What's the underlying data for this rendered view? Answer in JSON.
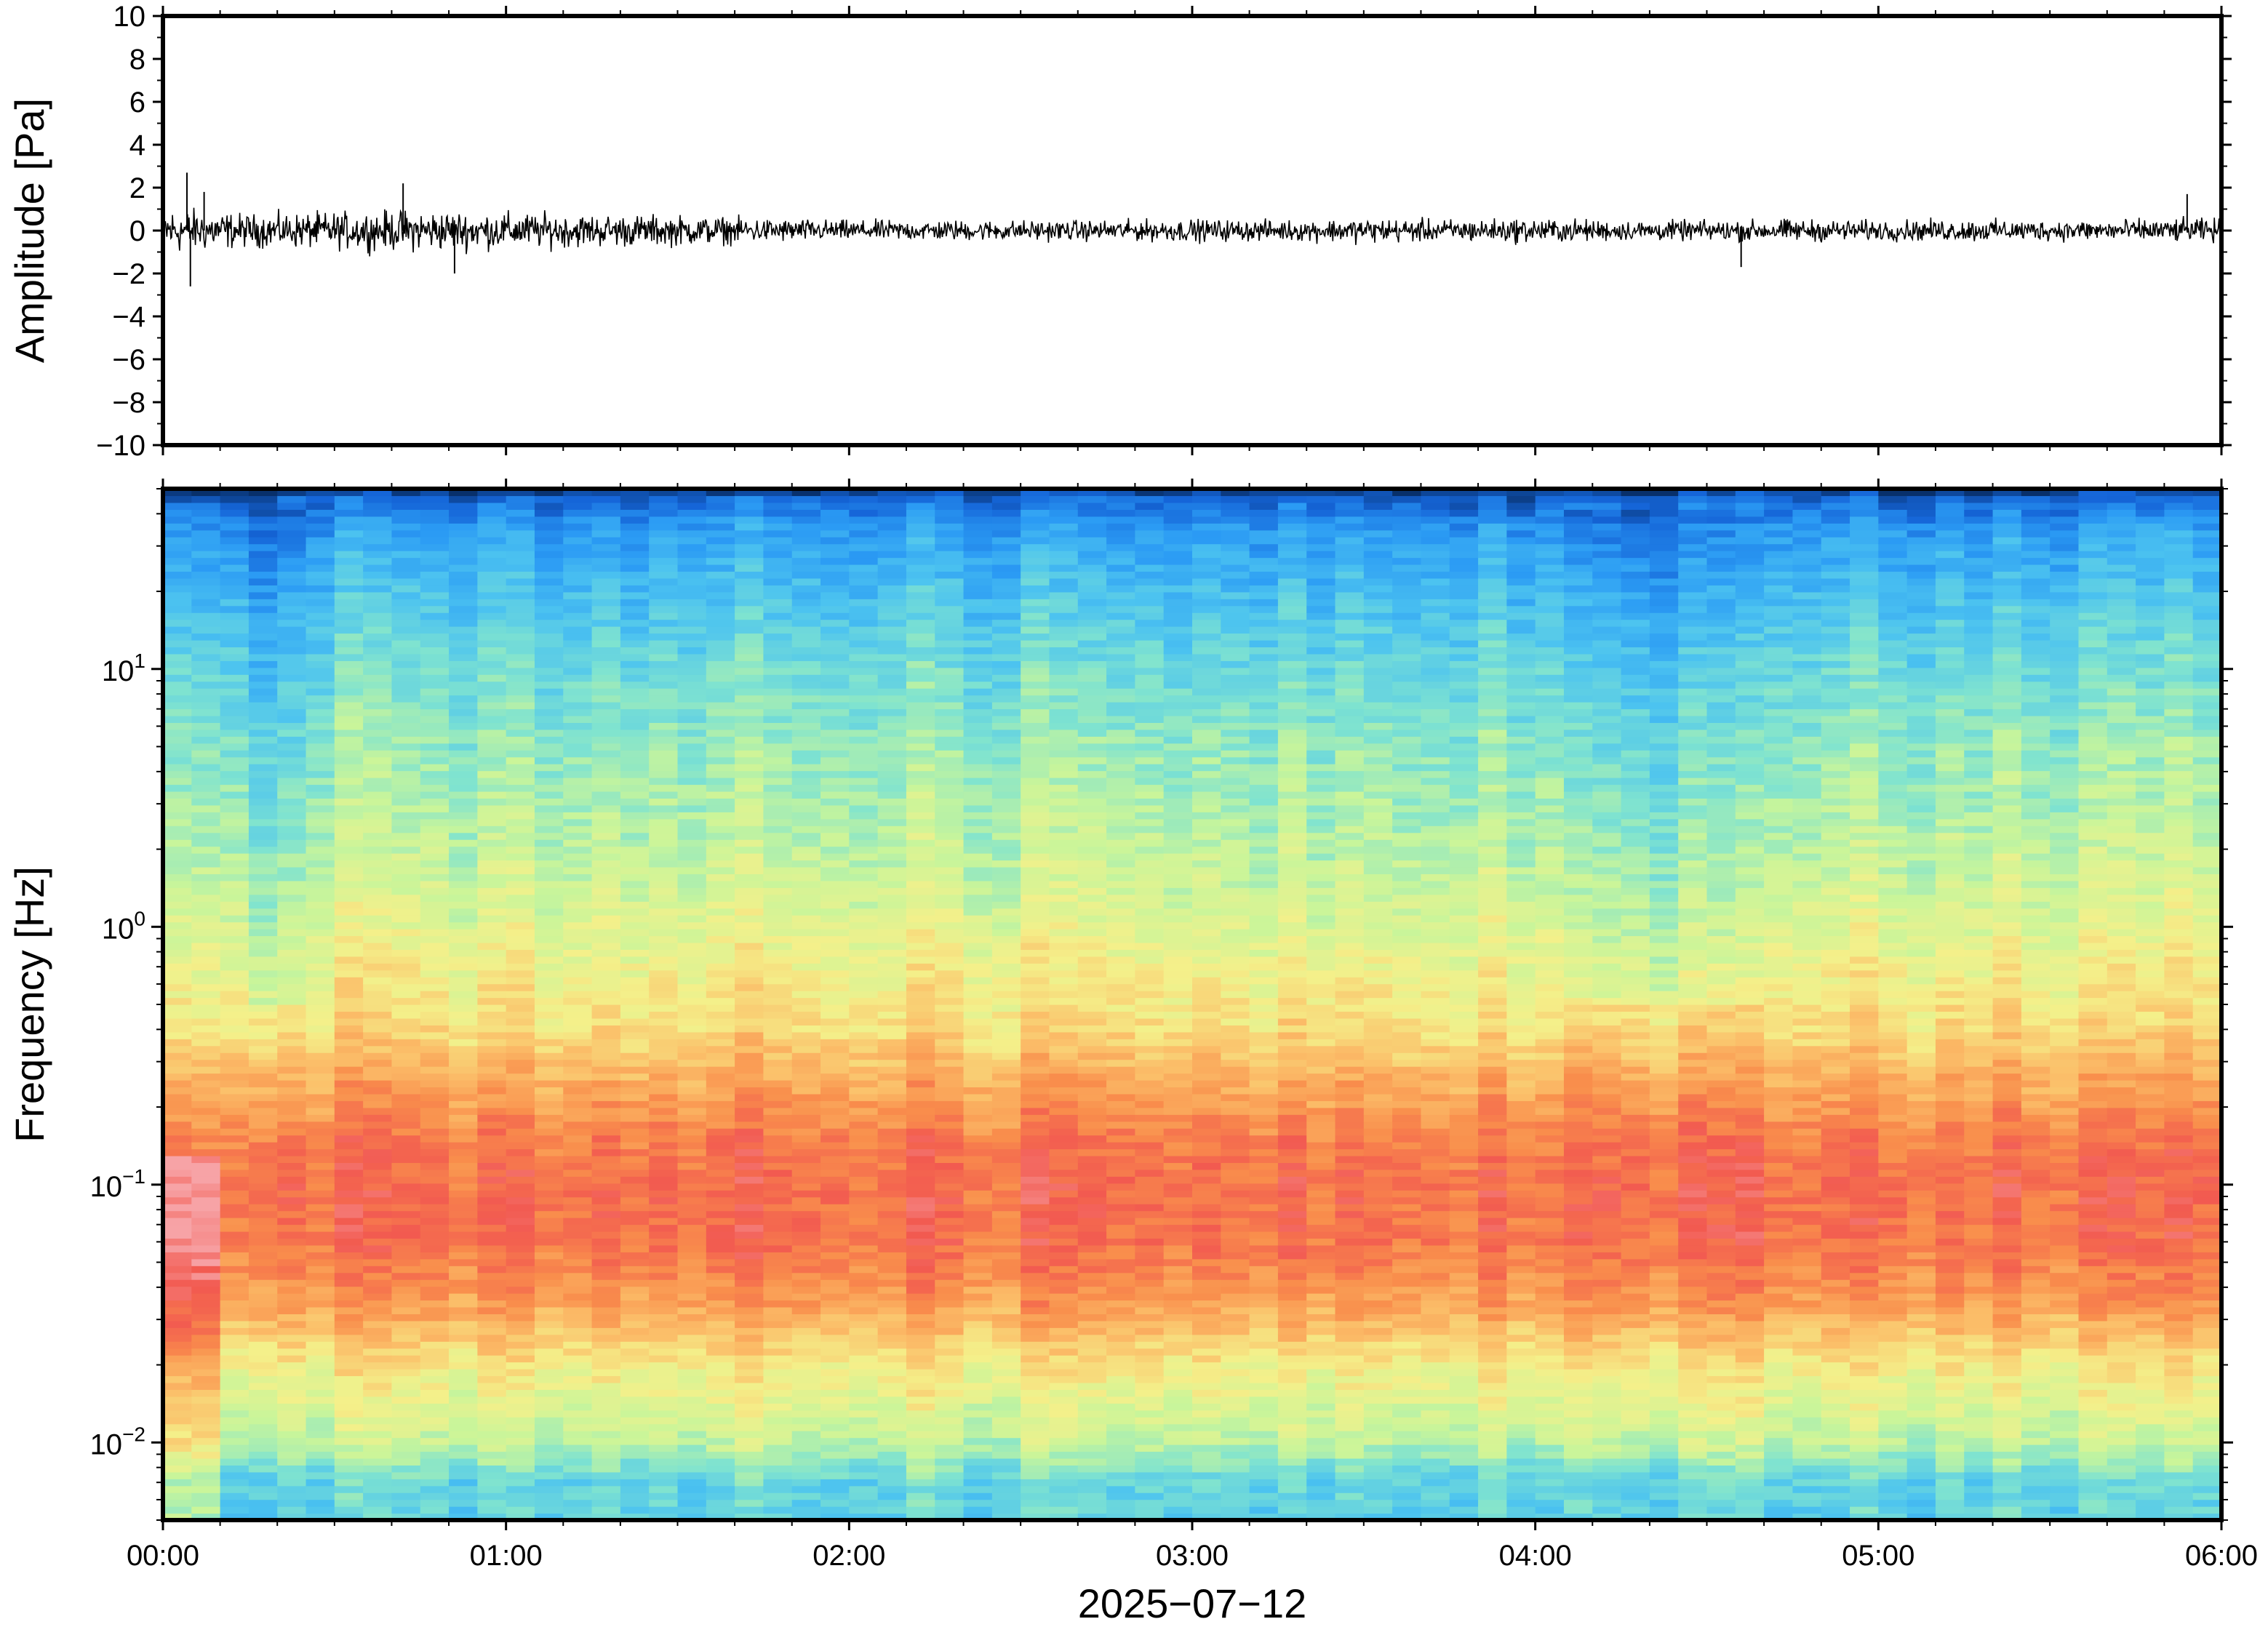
{
  "chart_data": [
    {
      "panel": "waveform",
      "type": "line",
      "ylabel": "Amplitude [Pa]",
      "ylim": [
        -10,
        10
      ],
      "yticks": [
        10,
        8,
        6,
        4,
        2,
        0,
        -2,
        -4,
        -6,
        -8,
        -10
      ],
      "ytick_labels": [
        "10",
        "8",
        "6",
        "4",
        "2",
        "0",
        "−2",
        "−4",
        "−6",
        "−8",
        "−10"
      ],
      "xlim_hours": [
        0,
        6
      ],
      "grid": false,
      "series": [
        {
          "x_hours": [
            0.0,
            0.25,
            0.5,
            0.75,
            1.0,
            1.25,
            1.5,
            1.75,
            2.0,
            2.25,
            2.5,
            2.75,
            3.0,
            3.25,
            3.5,
            3.75,
            4.0,
            4.25,
            4.5,
            4.75,
            5.0,
            5.25,
            5.5,
            5.75,
            6.0
          ],
          "envelope_pa": [
            1.2,
            0.8,
            0.9,
            1.0,
            0.9,
            0.8,
            0.75,
            0.6,
            0.5,
            0.5,
            0.5,
            0.5,
            0.55,
            0.5,
            0.6,
            0.55,
            0.6,
            0.5,
            0.5,
            0.55,
            0.5,
            0.55,
            0.5,
            0.55,
            0.6
          ],
          "spikes": [
            {
              "x_hours": 0.07,
              "y": 2.7
            },
            {
              "x_hours": 0.08,
              "y": -2.6
            },
            {
              "x_hours": 0.12,
              "y": 1.8
            },
            {
              "x_hours": 0.7,
              "y": 2.2
            },
            {
              "x_hours": 0.85,
              "y": -2.0
            },
            {
              "x_hours": 4.6,
              "y": -1.7
            },
            {
              "x_hours": 5.9,
              "y": 1.7
            }
          ]
        }
      ]
    },
    {
      "panel": "spectrogram",
      "type": "heatmap",
      "ylabel": "Frequency [Hz]",
      "yscale": "log",
      "ylim_hz": [
        0.005,
        50
      ],
      "yticks_hz": [
        10,
        1,
        0.1,
        0.01
      ],
      "ytick_labels": [
        {
          "base": "10",
          "exp": "1"
        },
        {
          "base": "10",
          "exp": "0"
        },
        {
          "base": "10",
          "exp": "−1"
        },
        {
          "base": "10",
          "exp": "−2"
        }
      ],
      "xlabel": "2025−07−12",
      "xlim_hours": [
        0,
        6
      ],
      "xticks_hours": [
        0,
        1,
        2,
        3,
        4,
        5,
        6
      ],
      "xtick_labels": [
        "00:00",
        "01:00",
        "02:00",
        "03:00",
        "04:00",
        "05:00",
        "06:00"
      ],
      "colormap": [
        "#08306b",
        "#1565d8",
        "#2b9bf4",
        "#4cc3f0",
        "#7fe3d0",
        "#c9f59a",
        "#f4f08a",
        "#fbc06a",
        "#f98e4c",
        "#f25a50",
        "#f7a3a6"
      ],
      "power_profile": {
        "freq_hz": [
          0.005,
          0.007,
          0.01,
          0.02,
          0.035,
          0.06,
          0.1,
          0.15,
          0.25,
          0.4,
          0.7,
          1.0,
          2.0,
          5.0,
          10.0,
          20.0,
          35.0,
          45.0,
          50.0
        ],
        "level": [
          0.35,
          0.36,
          0.5,
          0.62,
          0.78,
          0.86,
          0.87,
          0.84,
          0.75,
          0.65,
          0.6,
          0.56,
          0.5,
          0.44,
          0.38,
          0.3,
          0.22,
          0.12,
          0.02
        ]
      },
      "quiet_intervals_hours": [
        [
          0.25,
          0.45
        ],
        [
          4.1,
          4.7
        ]
      ],
      "loud_interval_hours": [
        0.0,
        0.2
      ]
    }
  ]
}
